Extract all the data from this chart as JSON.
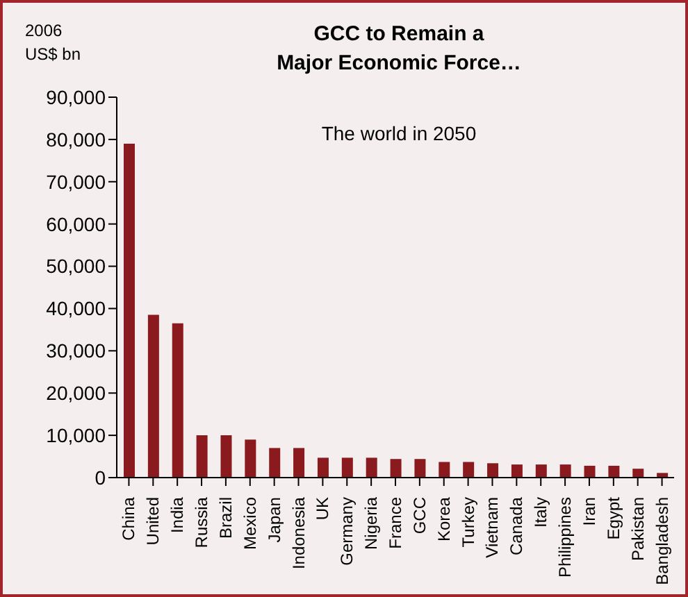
{
  "chart_data": {
    "type": "bar",
    "title": "GCC to Remain a\nMajor Economic Force…",
    "ylabel": "2006\nUS$ bn",
    "annotations": [
      "The world in 2050"
    ],
    "categories": [
      "China",
      "United",
      "India",
      "Russia",
      "Brazil",
      "Mexico",
      "Japan",
      "Indonesia",
      "UK",
      "Germany",
      "Nigeria",
      "France",
      "GCC",
      "Korea",
      "Turkey",
      "Vietnam",
      "Canada",
      "Italy",
      "Philippines",
      "Iran",
      "Egypt",
      "Pakistan",
      "Bangladesh"
    ],
    "values": [
      79000,
      38500,
      36500,
      10000,
      10000,
      9000,
      7000,
      7000,
      4700,
      4700,
      4700,
      4400,
      4400,
      3700,
      3700,
      3400,
      3100,
      3100,
      3100,
      2800,
      2800,
      2100,
      1100
    ],
    "color": "#8b1a1f",
    "ylim": [
      0,
      90000
    ],
    "yticks": [
      0,
      {
        "value": 10000,
        "label": "10,000"
      },
      {
        "value": 20000,
        "label": "20,000"
      },
      {
        "value": 30000,
        "label": "30,000"
      },
      {
        "value": 40000,
        "label": "40,000"
      },
      {
        "value": 50000,
        "label": "50,000"
      },
      {
        "value": 60000,
        "label": "60,000"
      },
      {
        "value": 70000,
        "label": "70,000"
      },
      {
        "value": 80000,
        "label": "80,000"
      },
      {
        "value": 90000,
        "label": "90,000"
      }
    ]
  }
}
